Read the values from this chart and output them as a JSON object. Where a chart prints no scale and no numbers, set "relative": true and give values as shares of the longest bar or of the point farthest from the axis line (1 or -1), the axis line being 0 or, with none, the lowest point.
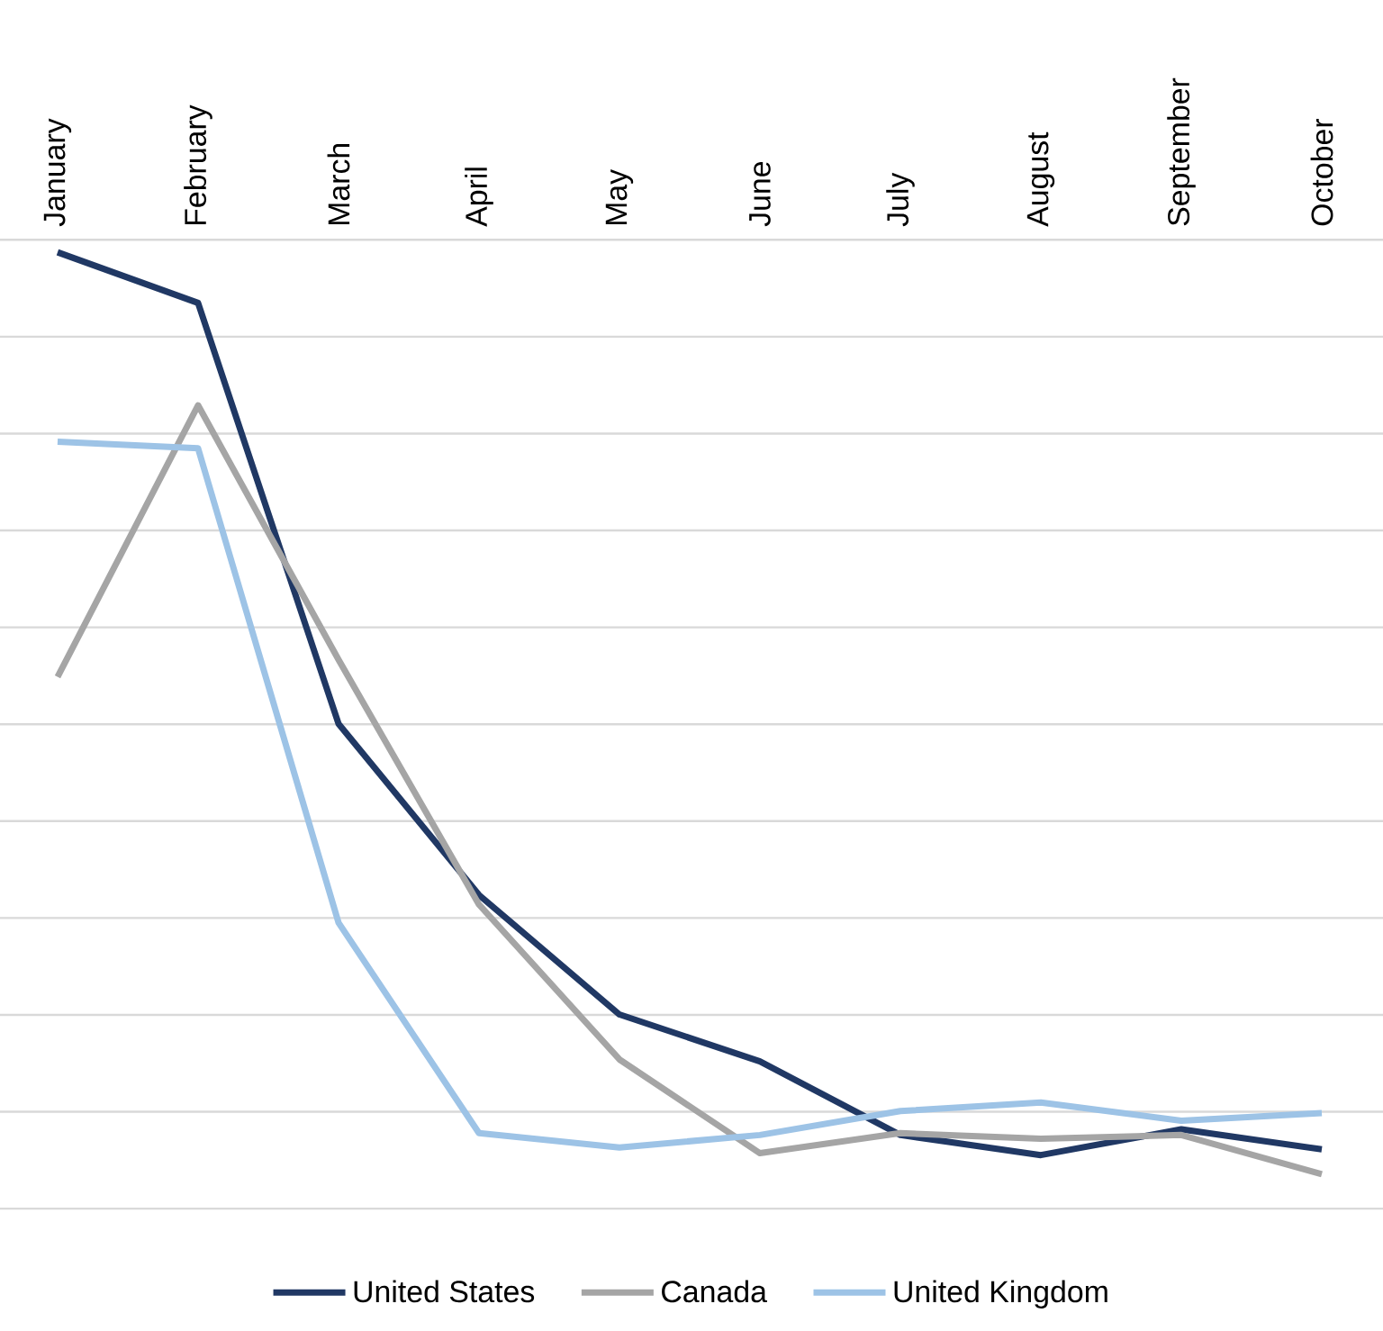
{
  "chart_data": {
    "type": "line",
    "relative": true,
    "grid": true,
    "legend": "bottom",
    "line_style": "solid",
    "categories": [
      "January",
      "February",
      "March",
      "April",
      "May",
      "June",
      "July",
      "August",
      "September",
      "October"
    ],
    "series": [
      {
        "name": "United States",
        "color": "#203864",
        "values": [
          1,
          0.947,
          0.507,
          0.328,
          0.203,
          0.154,
          0.077,
          0.056,
          0.083,
          0.062
        ]
      },
      {
        "name": "Canada",
        "color": "#a5a5a5",
        "values": [
          0.556,
          0.84,
          0.574,
          0.318,
          0.156,
          0.058,
          0.079,
          0.073,
          0.077,
          0.036
        ]
      },
      {
        "name": "United Kingdom",
        "color": "#9dc3e6",
        "values": [
          0.802,
          0.795,
          0.299,
          0.079,
          0.064,
          0.077,
          0.102,
          0.111,
          0.092,
          0.1
        ]
      }
    ]
  }
}
